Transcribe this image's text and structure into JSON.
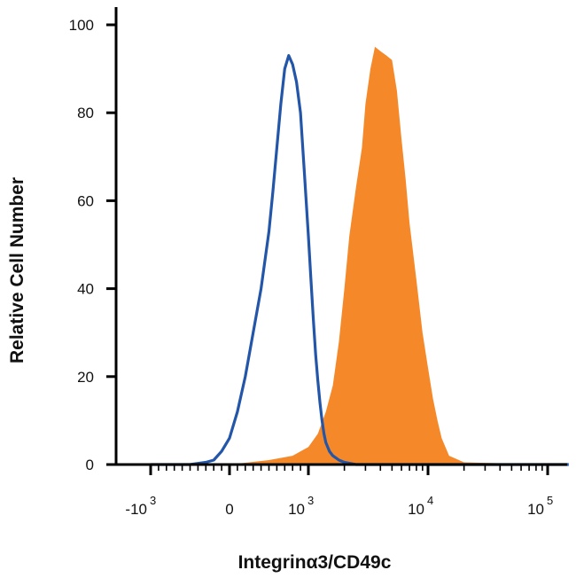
{
  "chart_data": {
    "type": "area",
    "xlabel": "Integrinα3/CD49c",
    "ylabel": "Relative Cell Number",
    "ylim": [
      0,
      100
    ],
    "x_scale": "biexponential (log above 10^3, linear near 0)",
    "xlim": [
      -2000,
      150000
    ],
    "x_ticks": [
      {
        "value": -1000,
        "base": "-10",
        "exp": "3"
      },
      {
        "value": 0,
        "base": "0",
        "exp": ""
      },
      {
        "value": 1000,
        "base": "10",
        "exp": "3"
      },
      {
        "value": 10000,
        "base": "10",
        "exp": "4"
      },
      {
        "value": 100000,
        "base": "10",
        "exp": "5"
      }
    ],
    "y_ticks": [
      0,
      20,
      40,
      60,
      80,
      100
    ],
    "grid": false,
    "legend": "none",
    "series": [
      {
        "style": "line",
        "color": "#2356a8",
        "x": [
          -1000,
          -500,
          -300,
          -200,
          -100,
          0,
          100,
          200,
          300,
          400,
          500,
          550,
          600,
          650,
          700,
          750,
          800,
          850,
          900,
          950,
          1000,
          1050,
          1100,
          1150,
          1200,
          1250,
          1300,
          1350,
          1400,
          1500,
          1600,
          1800,
          2000,
          2500,
          3000,
          5000,
          10000,
          100000,
          150000
        ],
        "y": [
          0,
          0,
          0.5,
          1,
          3,
          6,
          12,
          20,
          30,
          40,
          53,
          62,
          72,
          82,
          90,
          93,
          91,
          87,
          80,
          66,
          52,
          42,
          33,
          25,
          19,
          14,
          10,
          7,
          5,
          3,
          2,
          1,
          0.5,
          0,
          0,
          0,
          0,
          0,
          0
        ]
      },
      {
        "style": "filled",
        "color": "#f5892a",
        "x": [
          -2000,
          0,
          500,
          800,
          1000,
          1200,
          1400,
          1600,
          1800,
          2000,
          2200,
          2500,
          2800,
          3000,
          3300,
          3600,
          4000,
          4500,
          5000,
          5500,
          6000,
          6500,
          7000,
          8000,
          9000,
          10000,
          11000,
          12000,
          13000,
          15000,
          20000,
          100000,
          150000
        ],
        "y": [
          0,
          0,
          1,
          2,
          4,
          7,
          12,
          18,
          28,
          40,
          52,
          63,
          72,
          82,
          90,
          95,
          94,
          93,
          92,
          85,
          74,
          65,
          55,
          42,
          30,
          22,
          15,
          10,
          6,
          2,
          0.5,
          0,
          0
        ]
      }
    ]
  }
}
